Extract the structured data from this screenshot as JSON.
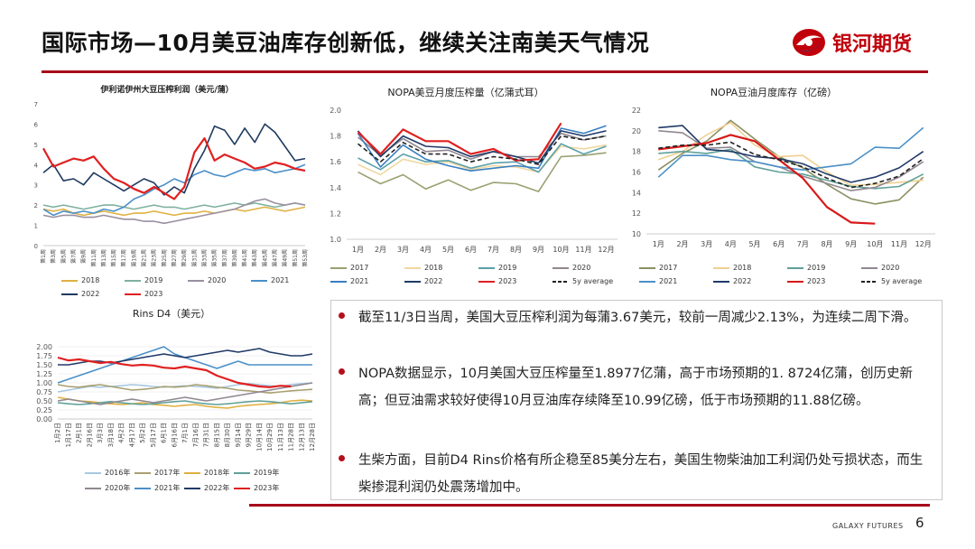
{
  "header": {
    "title": "国际市场—10月美豆油库存创新低，继续关注南美天气情况",
    "logo_text": "银河期货",
    "brand_color": "#c0000b"
  },
  "footer": {
    "brand": "GALAXY FUTURES",
    "page_number": "6"
  },
  "chart_data": [
    {
      "id": "crush",
      "type": "line",
      "title": "伊利诺伊州大豆压榨利润（美元/蒲）",
      "ylim": [
        0,
        7
      ],
      "yticks": [
        "0",
        "1",
        "2",
        "3",
        "4",
        "5",
        "6",
        "7"
      ],
      "xticks": [
        "第1周",
        "第3周",
        "第5周",
        "第7周",
        "第9周",
        "第11周",
        "第13周",
        "第15周",
        "第17周",
        "第19周",
        "第21周",
        "第23周",
        "第25周",
        "第27周",
        "第29周",
        "第31周",
        "第33周",
        "第35周",
        "第37周",
        "第39周",
        "第41周",
        "第43周",
        "第45周",
        "第47周",
        "第49周",
        "第51周",
        "第53周"
      ],
      "series": [
        {
          "name": "2018",
          "color": "#e0b040",
          "values": [
            1.8,
            1.7,
            1.8,
            1.6,
            1.5,
            1.6,
            1.7,
            1.6,
            1.5,
            1.6,
            1.6,
            1.7,
            1.6,
            1.5,
            1.6,
            1.6,
            1.7,
            1.6,
            1.7,
            1.8,
            1.7,
            1.8,
            1.9,
            1.8,
            1.7,
            1.8,
            1.9
          ]
        },
        {
          "name": "2019",
          "color": "#7fb0a0",
          "values": [
            2.0,
            1.9,
            2.0,
            1.9,
            1.8,
            1.9,
            2.0,
            2.0,
            1.9,
            1.8,
            1.9,
            2.0,
            1.9,
            1.9,
            1.8,
            1.9,
            2.0,
            1.9,
            2.0,
            2.1,
            2.0,
            2.1,
            2.0,
            1.9,
            2.0,
            2.1,
            2.0
          ]
        },
        {
          "name": "2020",
          "color": "#9a8fa0",
          "values": [
            1.5,
            1.4,
            1.5,
            1.5,
            1.4,
            1.4,
            1.5,
            1.4,
            1.3,
            1.3,
            1.2,
            1.2,
            1.1,
            1.2,
            1.3,
            1.4,
            1.5,
            1.6,
            1.7,
            1.8,
            2.0,
            2.2,
            2.3,
            2.1,
            2.0,
            2.1,
            2.0
          ]
        },
        {
          "name": "2021",
          "color": "#4a8fc8",
          "values": [
            1.8,
            1.5,
            1.7,
            1.6,
            1.7,
            1.6,
            1.8,
            1.7,
            1.9,
            2.3,
            2.5,
            2.8,
            3.0,
            3.3,
            3.1,
            3.5,
            3.7,
            3.5,
            3.4,
            3.6,
            3.8,
            3.7,
            3.8,
            3.6,
            3.7,
            3.8,
            4.0
          ]
        },
        {
          "name": "2022",
          "color": "#1f3a60",
          "values": [
            3.6,
            4.0,
            3.2,
            3.3,
            3.0,
            3.6,
            3.3,
            3.0,
            2.7,
            3.0,
            3.3,
            3.1,
            2.5,
            2.9,
            2.6,
            3.8,
            4.7,
            5.9,
            5.7,
            5.0,
            5.8,
            5.1,
            6.0,
            5.6,
            4.9,
            4.2,
            4.3
          ]
        },
        {
          "name": "2023",
          "color": "#e02020",
          "values": [
            4.8,
            3.9,
            4.1,
            4.3,
            4.2,
            4.4,
            3.8,
            3.3,
            3.1,
            2.8,
            2.6,
            2.9,
            2.6,
            2.3,
            2.9,
            4.6,
            5.3,
            4.2,
            4.5,
            4.3,
            4.1,
            3.8,
            3.9,
            4.1,
            4.0,
            3.8,
            3.7
          ]
        }
      ]
    },
    {
      "id": "nopa_crush",
      "type": "line",
      "title": "NOPA美豆月度压榨量（亿蒲式耳）",
      "ylim": [
        1.0,
        2.0
      ],
      "yticks": [
        "1.0",
        "1.2",
        "1.4",
        "1.6",
        "1.8",
        "2.0"
      ],
      "xticks": [
        "1月",
        "2月",
        "3月",
        "4月",
        "5月",
        "6月",
        "7月",
        "8月",
        "9月",
        "10月",
        "11月",
        "12月"
      ],
      "series": [
        {
          "name": "2017",
          "color": "#9aa070",
          "values": [
            1.52,
            1.43,
            1.5,
            1.39,
            1.46,
            1.38,
            1.44,
            1.43,
            1.37,
            1.64,
            1.65,
            1.67
          ]
        },
        {
          "name": "2018",
          "color": "#f0d8a0",
          "values": [
            1.58,
            1.5,
            1.62,
            1.58,
            1.6,
            1.54,
            1.57,
            1.56,
            1.52,
            1.72,
            1.7,
            1.73
          ]
        },
        {
          "name": "2019",
          "color": "#5aa0a8",
          "values": [
            1.63,
            1.54,
            1.66,
            1.6,
            1.61,
            1.55,
            1.59,
            1.6,
            1.52,
            1.74,
            1.66,
            1.72
          ]
        },
        {
          "name": "2020",
          "color": "#908890",
          "values": [
            1.79,
            1.65,
            1.78,
            1.68,
            1.69,
            1.62,
            1.68,
            1.64,
            1.64,
            1.82,
            1.77,
            1.8
          ]
        },
        {
          "name": "2021",
          "color": "#3a7fc0",
          "values": [
            1.82,
            1.56,
            1.73,
            1.62,
            1.57,
            1.53,
            1.55,
            1.57,
            1.55,
            1.86,
            1.82,
            1.88
          ]
        },
        {
          "name": "2022",
          "color": "#203a68",
          "values": [
            1.84,
            1.64,
            1.8,
            1.72,
            1.71,
            1.64,
            1.68,
            1.64,
            1.59,
            1.84,
            1.8,
            1.84
          ]
        },
        {
          "name": "2023",
          "color": "#e02020",
          "values": [
            1.83,
            1.66,
            1.85,
            1.76,
            1.76,
            1.66,
            1.7,
            1.61,
            1.62,
            1.9,
            null,
            null
          ]
        },
        {
          "name": "5y average",
          "color": "#222222",
          "dashed": true,
          "values": [
            1.74,
            1.6,
            1.75,
            1.66,
            1.66,
            1.6,
            1.64,
            1.62,
            1.58,
            1.8,
            1.77,
            1.8
          ]
        }
      ]
    },
    {
      "id": "nopa_stocks",
      "type": "line",
      "title": "NOPA豆油月度库存（亿磅）",
      "ylim": [
        10,
        22
      ],
      "yticks": [
        "10",
        "12",
        "14",
        "16",
        "18",
        "20",
        "22"
      ],
      "xticks": [
        "1月",
        "2月",
        "3月",
        "4月",
        "5月",
        "6月",
        "7月",
        "8月",
        "9月",
        "10月",
        "11月",
        "12月"
      ],
      "series": [
        {
          "name": "2017",
          "color": "#8a9060",
          "values": [
            16.2,
            17.8,
            19.0,
            21.0,
            19.2,
            17.5,
            16.4,
            14.8,
            13.4,
            12.9,
            13.3,
            15.5
          ]
        },
        {
          "name": "2018",
          "color": "#f0d090",
          "values": [
            17.2,
            18.0,
            19.6,
            20.8,
            18.6,
            17.5,
            17.6,
            16.0,
            14.7,
            14.8,
            15.0,
            15.2
          ]
        },
        {
          "name": "2019",
          "color": "#60a098",
          "values": [
            17.8,
            18.0,
            17.8,
            18.2,
            16.5,
            16.0,
            15.8,
            15.2,
            14.6,
            14.4,
            14.6,
            15.8
          ]
        },
        {
          "name": "2020",
          "color": "#908890",
          "values": [
            20.0,
            19.8,
            18.3,
            18.4,
            17.0,
            16.5,
            15.6,
            14.9,
            14.2,
            14.5,
            15.5,
            17.0
          ]
        },
        {
          "name": "2021",
          "color": "#4a90c8",
          "values": [
            15.5,
            17.6,
            17.6,
            17.2,
            17.0,
            16.5,
            16.2,
            16.5,
            16.8,
            18.4,
            18.3,
            20.3
          ]
        },
        {
          "name": "2022",
          "color": "#203a68",
          "values": [
            20.3,
            20.5,
            18.2,
            18.0,
            17.5,
            17.3,
            16.8,
            15.8,
            15.0,
            15.5,
            16.4,
            18.0
          ]
        },
        {
          "name": "2023",
          "color": "#d81818",
          "values": [
            18.2,
            18.5,
            18.8,
            19.6,
            19.0,
            17.2,
            15.4,
            12.6,
            11.1,
            10.99,
            null,
            null
          ]
        },
        {
          "name": "5y average",
          "color": "#222222",
          "dashed": true,
          "values": [
            18.3,
            18.6,
            18.6,
            18.9,
            17.7,
            17.2,
            16.5,
            15.4,
            14.5,
            14.9,
            15.6,
            17.3
          ]
        }
      ]
    },
    {
      "id": "rins",
      "type": "line",
      "title": "Rins D4（美元）",
      "ylim": [
        0.0,
        2.0
      ],
      "yticks": [
        "0.00",
        "0.25",
        "0.50",
        "0.75",
        "1.00",
        "1.25",
        "1.50",
        "1.75",
        "2.00"
      ],
      "xticks": [
        "1月2日",
        "1月17日",
        "2月1日",
        "2月16日",
        "3月3日",
        "3月18日",
        "4月2日",
        "4月17日",
        "5月2日",
        "5月17日",
        "6月1日",
        "6月16日",
        "7月1日",
        "7月16日",
        "7月31日",
        "8月15日",
        "8月30日",
        "9月14日",
        "9月29日",
        "10月14日",
        "10月29日",
        "11月13日",
        "11月28日",
        "12月13日",
        "12月28日"
      ],
      "series": [
        {
          "name": "2016年",
          "color": "#a8c8e0",
          "values": [
            0.75,
            0.8,
            0.85,
            0.9,
            0.88,
            0.9,
            0.92,
            0.95,
            0.93,
            0.9,
            0.88,
            0.9,
            0.92,
            0.9,
            0.88,
            0.85,
            0.9,
            0.95,
            0.98,
            0.95,
            0.92,
            0.9,
            0.95,
            0.98,
            1.0
          ]
        },
        {
          "name": "2017年",
          "color": "#a8a070",
          "values": [
            0.95,
            0.9,
            0.88,
            0.92,
            0.95,
            0.9,
            0.85,
            0.8,
            0.82,
            0.85,
            0.9,
            0.88,
            0.9,
            0.95,
            0.92,
            0.88,
            0.85,
            0.8,
            0.78,
            0.75,
            0.72,
            0.75,
            0.78,
            0.8,
            0.82
          ]
        },
        {
          "name": "2018年",
          "color": "#e0b040",
          "values": [
            0.6,
            0.55,
            0.5,
            0.48,
            0.45,
            0.42,
            0.4,
            0.42,
            0.45,
            0.4,
            0.38,
            0.35,
            0.38,
            0.4,
            0.35,
            0.32,
            0.3,
            0.35,
            0.38,
            0.4,
            0.42,
            0.45,
            0.5,
            0.52,
            0.5
          ]
        },
        {
          "name": "2019年",
          "color": "#60a098",
          "values": [
            0.45,
            0.42,
            0.4,
            0.42,
            0.45,
            0.48,
            0.45,
            0.42,
            0.4,
            0.42,
            0.45,
            0.48,
            0.5,
            0.45,
            0.42,
            0.4,
            0.42,
            0.45,
            0.48,
            0.5,
            0.48,
            0.45,
            0.42,
            0.45,
            0.48
          ]
        },
        {
          "name": "2020年",
          "color": "#908890",
          "values": [
            0.5,
            0.55,
            0.5,
            0.45,
            0.4,
            0.45,
            0.5,
            0.55,
            0.5,
            0.45,
            0.5,
            0.55,
            0.6,
            0.55,
            0.5,
            0.55,
            0.6,
            0.65,
            0.7,
            0.75,
            0.8,
            0.85,
            0.9,
            0.95,
            1.0
          ]
        },
        {
          "name": "2021年",
          "color": "#4a90c8",
          "values": [
            1.0,
            1.1,
            1.2,
            1.3,
            1.4,
            1.5,
            1.6,
            1.7,
            1.8,
            1.9,
            2.0,
            1.8,
            1.7,
            1.6,
            1.5,
            1.4,
            1.5,
            1.6,
            1.5,
            1.5,
            1.5,
            1.5,
            1.5,
            1.5,
            1.5
          ]
        },
        {
          "name": "2022年",
          "color": "#203a68",
          "values": [
            1.5,
            1.5,
            1.55,
            1.6,
            1.6,
            1.55,
            1.6,
            1.65,
            1.7,
            1.75,
            1.8,
            1.75,
            1.7,
            1.75,
            1.8,
            1.85,
            1.9,
            1.85,
            1.9,
            1.95,
            1.85,
            1.8,
            1.75,
            1.75,
            1.8
          ]
        },
        {
          "name": "2023年",
          "color": "#e02020",
          "values": [
            1.7,
            1.62,
            1.65,
            1.6,
            1.55,
            1.58,
            1.52,
            1.48,
            1.5,
            1.48,
            1.42,
            1.4,
            1.45,
            1.4,
            1.35,
            1.2,
            1.1,
            1.0,
            0.95,
            0.9,
            0.88,
            0.92,
            0.9,
            null,
            null
          ]
        }
      ]
    }
  ],
  "bullets": [
    "截至11/3日当周，美国大豆压榨利润为每蒲3.67美元，较前一周减少2.13%，为连续二周下滑。",
    "NOPA数据显示，10月美国大豆压榨量至1.8977亿蒲，高于市场预期的1. 8724亿蒲，创历史新高；但豆油需求较好使得10月豆油库存续降至10.99亿磅，低于市场预期的11.88亿磅。",
    "生柴方面，目前D4 Rins价格有所企稳至85美分左右，美国生物柴油加工利润仍处亏损状态，而生柴掺混利润仍处震荡增加中。"
  ]
}
